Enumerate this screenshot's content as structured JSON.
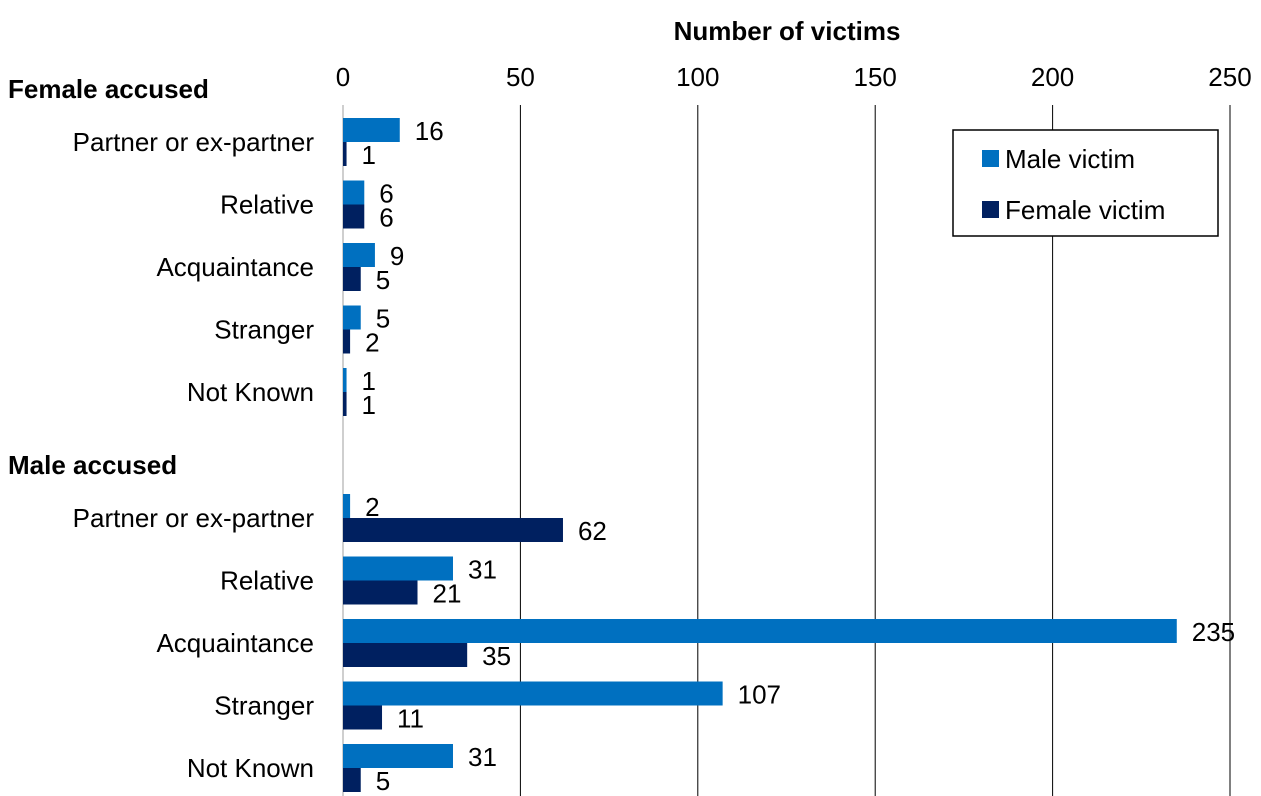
{
  "chart_data": {
    "type": "bar",
    "orientation": "horizontal",
    "xlabel": "Number of victims",
    "xlim": [
      0,
      250
    ],
    "xticks": [
      0,
      50,
      100,
      150,
      200,
      250
    ],
    "grid": true,
    "legend_position": "top-right",
    "groups": [
      {
        "name": "Female accused",
        "categories": [
          "Partner or ex-partner",
          "Relative",
          "Acquaintance",
          "Stranger",
          "Not Known"
        ],
        "series": [
          {
            "name": "Male victim",
            "values": [
              16,
              6,
              9,
              5,
              1
            ]
          },
          {
            "name": "Female victim",
            "values": [
              1,
              6,
              5,
              2,
              1
            ]
          }
        ]
      },
      {
        "name": "Male accused",
        "categories": [
          "Partner or ex-partner",
          "Relative",
          "Acquaintance",
          "Stranger",
          "Not Known"
        ],
        "series": [
          {
            "name": "Male victim",
            "values": [
              2,
              31,
              235,
              107,
              31
            ]
          },
          {
            "name": "Female victim",
            "values": [
              62,
              21,
              35,
              11,
              5
            ]
          }
        ]
      }
    ],
    "colors": {
      "Male victim": "#0070c0",
      "Female victim": "#002060"
    }
  }
}
